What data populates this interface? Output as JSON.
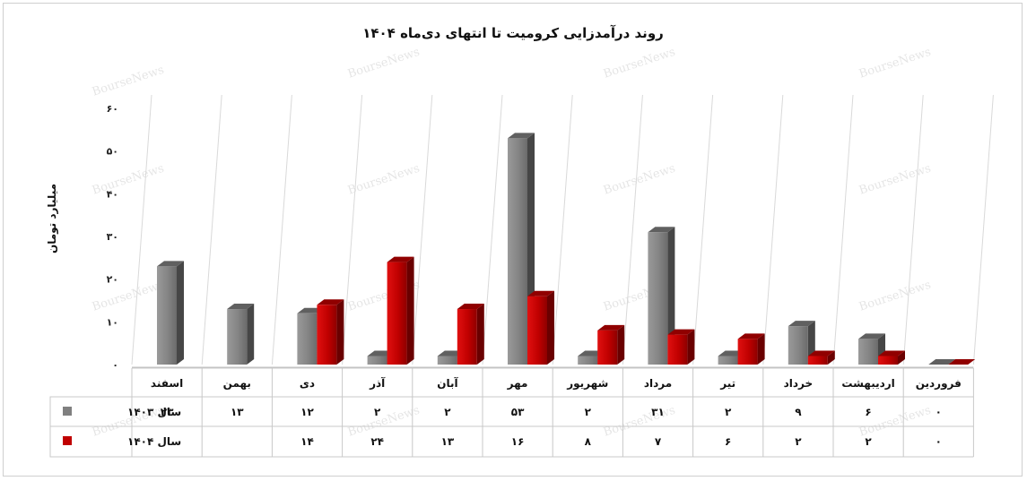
{
  "chart_data": {
    "type": "bar",
    "title": "روند درآمدزایی کرومیت تا انتهای دی‌ماه ۱۴۰۴",
    "ylabel": "میلیارد تومان",
    "xlabel": "",
    "ylim": [
      0,
      60
    ],
    "yticks": [
      0,
      10,
      20,
      30,
      40,
      50,
      60
    ],
    "ytick_labels": [
      "۰",
      "۱۰",
      "۲۰",
      "۳۰",
      "۴۰",
      "۵۰",
      "۶۰"
    ],
    "grid": "vertical",
    "legend": "data-table-left",
    "categories": [
      "فروردین",
      "اردیبهشت",
      "خرداد",
      "تیر",
      "مرداد",
      "شهریور",
      "مهر",
      "آبان",
      "آذر",
      "دی",
      "بهمن",
      "اسفند"
    ],
    "series": [
      {
        "name": "سال ۱۴۰۳",
        "color": "#808080",
        "values": [
          0,
          6,
          9,
          2,
          31,
          2,
          53,
          2,
          2,
          12,
          13,
          23
        ],
        "labels": [
          "۰",
          "۶",
          "۹",
          "۲",
          "۳۱",
          "۲",
          "۵۳",
          "۲",
          "۲",
          "۱۲",
          "۱۳",
          "۲۳"
        ]
      },
      {
        "name": "سال ۱۴۰۴",
        "color": "#c00000",
        "values": [
          0,
          2,
          2,
          6,
          7,
          8,
          16,
          13,
          24,
          14,
          null,
          null
        ],
        "labels": [
          "۰",
          "۲",
          "۲",
          "۶",
          "۷",
          "۸",
          "۱۶",
          "۱۳",
          "۲۴",
          "۱۴",
          "",
          ""
        ]
      }
    ],
    "watermark": "BourseNews"
  }
}
